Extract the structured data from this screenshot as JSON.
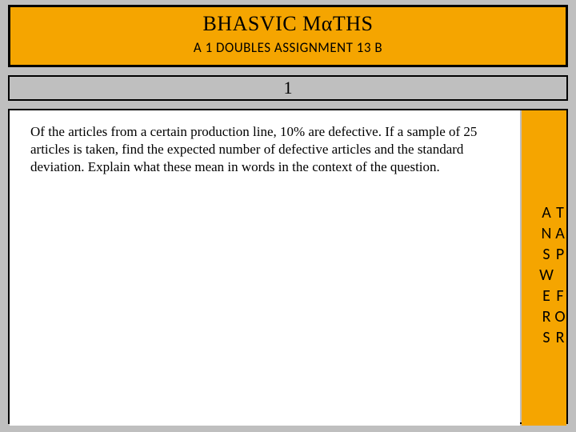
{
  "header": {
    "title_prefix": "BHASVIC M",
    "title_alpha": "α",
    "title_suffix": "THS",
    "subtitle": "A 1 DOUBLES ASSIGNMENT 13 B"
  },
  "question": {
    "number": "1",
    "body": "Of the articles from a certain production line, 10% are defective. If a sample of 25 articles is taken, find the expected number of defective articles and the standard deviation. Explain what these mean in words in the context of the question."
  },
  "sidebar": {
    "tap_label": "TAP FOR ANSWERS"
  },
  "colors": {
    "accent": "#f5a500",
    "page_bg": "#bfbfbf",
    "content_bg": "#ffffff",
    "border": "#000000",
    "text": "#000000"
  }
}
